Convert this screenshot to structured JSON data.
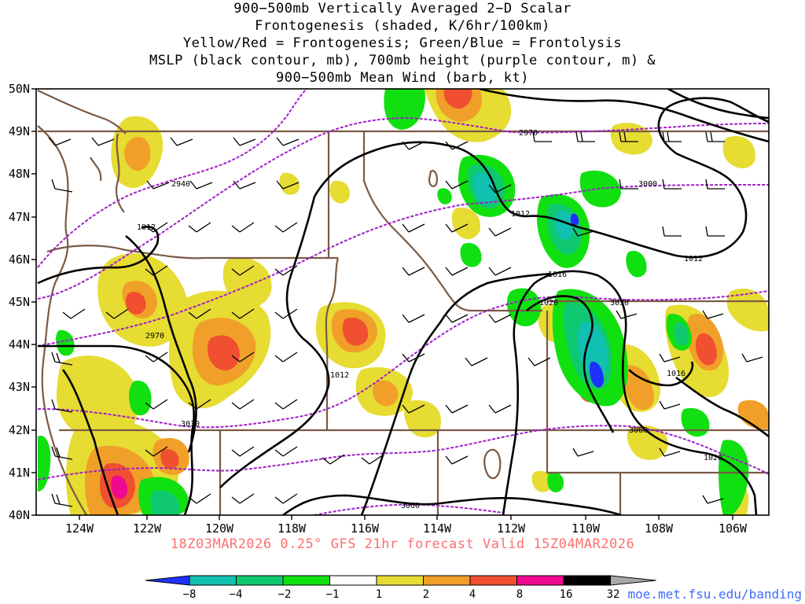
{
  "title": {
    "lines": [
      "900−500mb Vertically Averaged 2−D Scalar",
      "Frontogenesis (shaded, K/6hr/100km)",
      "Yellow/Red = Frontogenesis;  Green/Blue = Frontolysis",
      "MSLP (black contour, mb), 700mb height (purple contour, m) &",
      "900−500mb Mean Wind (barb, kt)"
    ]
  },
  "map": {
    "lat_labels": [
      "50N",
      "49N",
      "48N",
      "47N",
      "46N",
      "45N",
      "44N",
      "43N",
      "42N",
      "41N",
      "40N"
    ],
    "lon_labels": [
      "124W",
      "122W",
      "120W",
      "118W",
      "116W",
      "114W",
      "112W",
      "110W",
      "108W",
      "106W"
    ],
    "mslp_labels": [
      "1012",
      "1012",
      "1012",
      "1012",
      "1016",
      "1020",
      "1016",
      "1020"
    ],
    "height_labels": [
      "2970",
      "2940",
      "3000",
      "2970",
      "3030",
      "3030",
      "3060",
      "3060"
    ],
    "colors": {
      "mslp": "#000000",
      "height": "#a020c8",
      "borders": "#7a5a44"
    }
  },
  "footer": "18Z03MAR2026 0.25° GFS 21hr forecast Valid 15Z04MAR2026",
  "colorbar": {
    "labels": [
      "−8",
      "−4",
      "−2",
      "−1",
      "1",
      "2",
      "4",
      "8",
      "16",
      "32"
    ],
    "colors": [
      "#2030ff",
      "#10c0b0",
      "#10c870",
      "#10e010",
      "#ffffff",
      "#e6dc32",
      "#f0a028",
      "#f05030",
      "#f00890",
      "#000000",
      "#a8a8a8"
    ]
  },
  "credit": "moe.met.fsu.edu/banding"
}
